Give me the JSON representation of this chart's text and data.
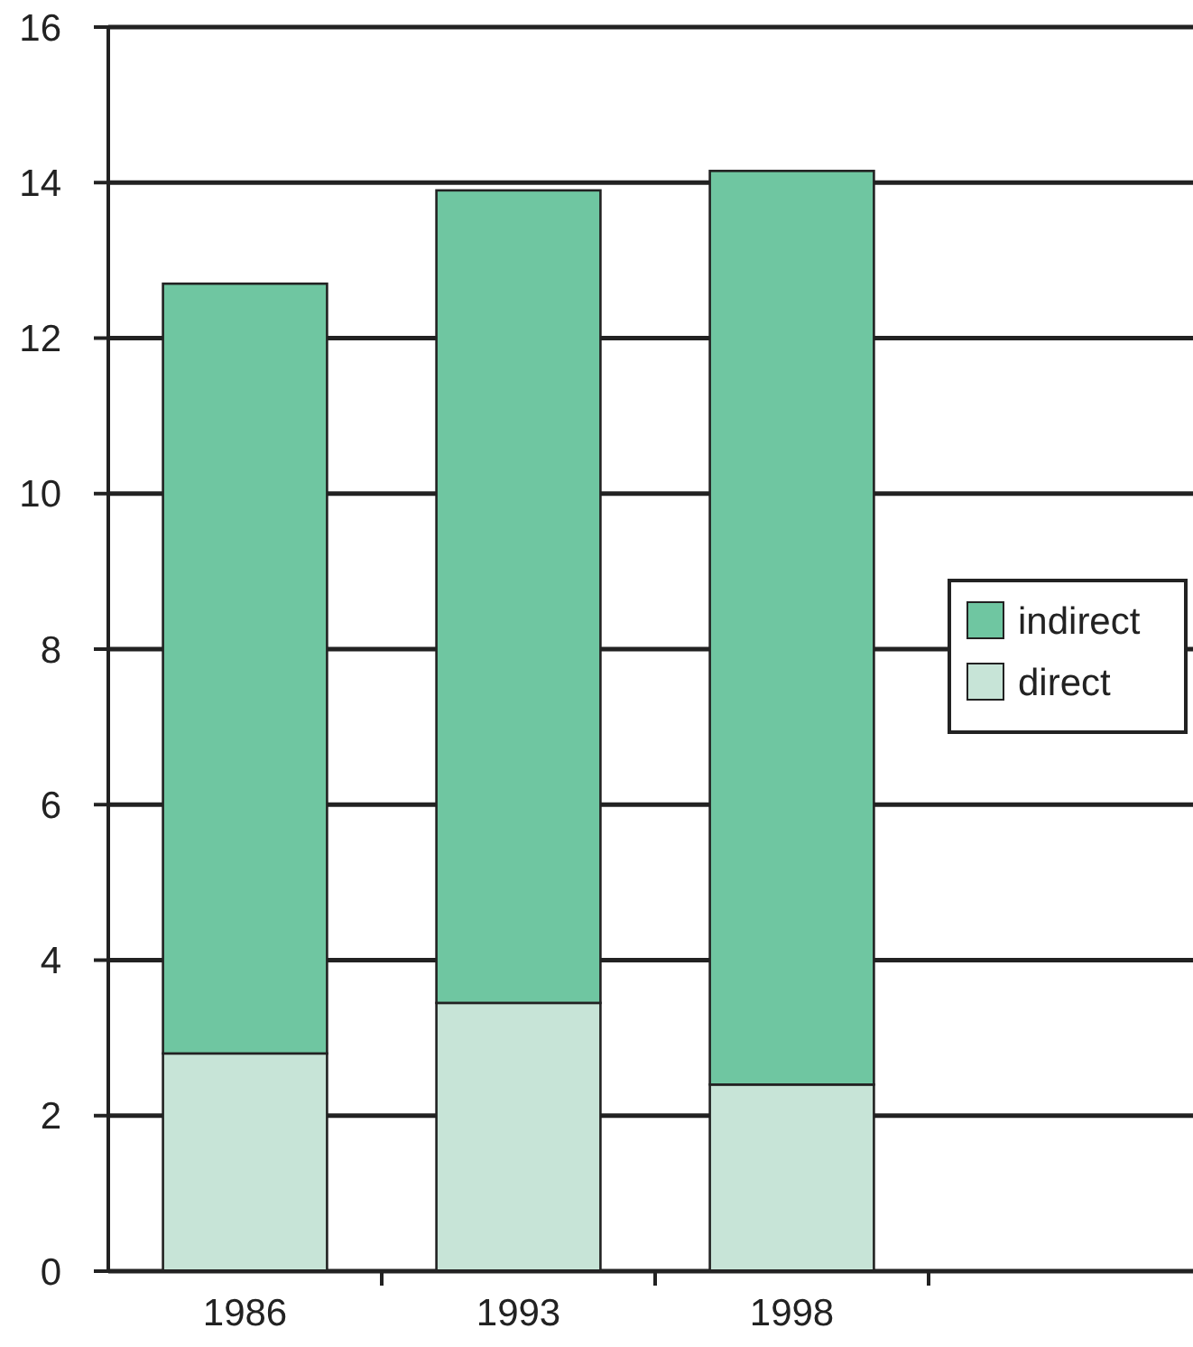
{
  "chart_data": {
    "type": "bar",
    "stacked": true,
    "categories": [
      "1986",
      "1993",
      "1998",
      null
    ],
    "series": [
      {
        "name": "direct",
        "color": "#c7e4d7",
        "values": [
          2.8,
          3.45,
          2.4,
          null
        ]
      },
      {
        "name": "indirect",
        "color": "#6fc6a1",
        "values": [
          9.9,
          10.45,
          11.75,
          null
        ]
      }
    ],
    "ylim": [
      0,
      16
    ],
    "yticks": [
      0,
      2,
      4,
      6,
      8,
      10,
      12,
      14,
      16
    ],
    "grid": "y",
    "legend": "right"
  }
}
